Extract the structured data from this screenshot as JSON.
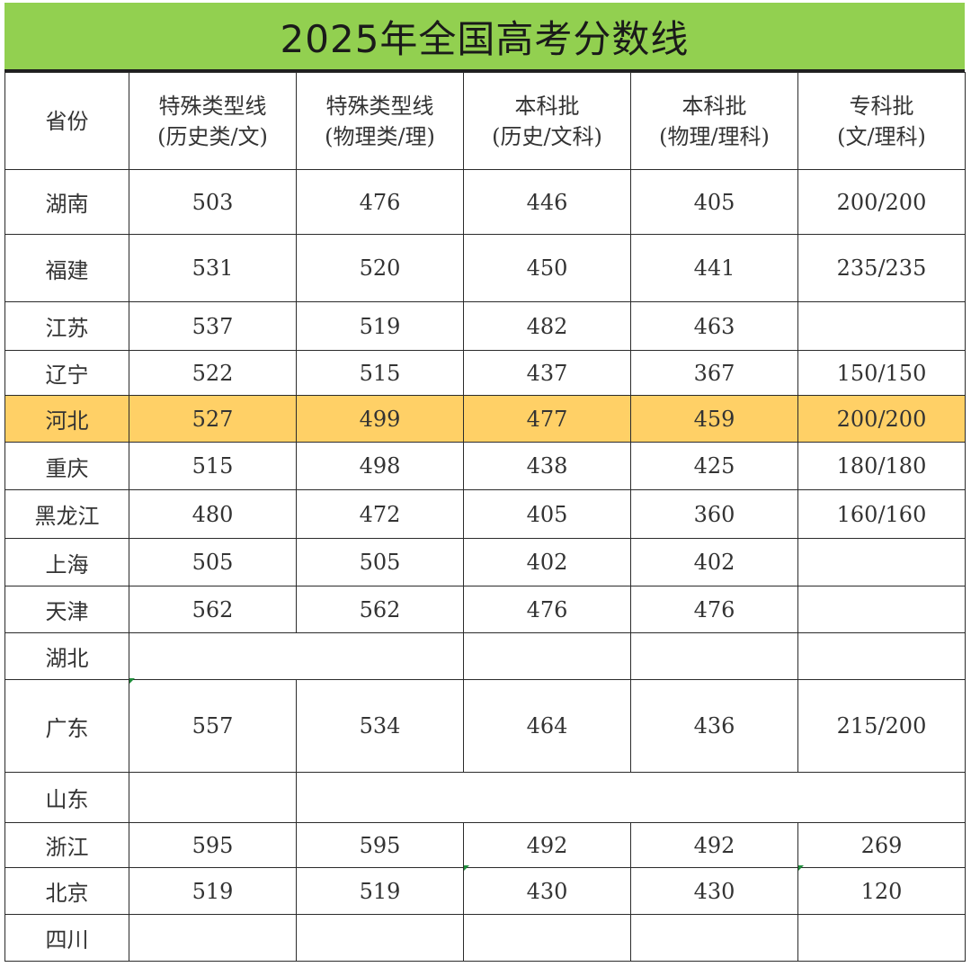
{
  "title": "2025年全国高考分数线",
  "headers": [
    [
      "省份"
    ],
    [
      "特殊类型线",
      "(历史类/文)"
    ],
    [
      "特殊类型线",
      "(物理类/理)"
    ],
    [
      "本科批",
      "(历史/文科)"
    ],
    [
      "本科批",
      "(物理/理科)"
    ],
    [
      "专科批",
      "(文/理科)"
    ]
  ],
  "rows": [
    {
      "province": "湖南",
      "values": [
        "503",
        "476",
        "446",
        "405",
        "200/200"
      ]
    },
    {
      "province": "福建",
      "values": [
        "531",
        "520",
        "450",
        "441",
        "235/235"
      ]
    },
    {
      "province": "江苏",
      "values": [
        "537",
        "519",
        "482",
        "463",
        ""
      ]
    },
    {
      "province": "辽宁",
      "values": [
        "522",
        "515",
        "437",
        "367",
        "150/150"
      ]
    },
    {
      "province": "河北",
      "values": [
        "527",
        "499",
        "477",
        "459",
        "200/200"
      ],
      "highlight": true
    },
    {
      "province": "重庆",
      "values": [
        "515",
        "498",
        "438",
        "425",
        "180/180"
      ]
    },
    {
      "province": "黑龙江",
      "values": [
        "480",
        "472",
        "405",
        "360",
        "160/160"
      ]
    },
    {
      "province": "上海",
      "values": [
        "505",
        "505",
        "402",
        "402",
        ""
      ]
    },
    {
      "province": "天津",
      "values": [
        "562",
        "562",
        "476",
        "476",
        ""
      ]
    },
    {
      "province": "湖北",
      "values": []
    },
    {
      "province": "广东",
      "values": [
        "557",
        "534",
        "464",
        "436",
        "215/200"
      ]
    },
    {
      "province": "山东",
      "values": []
    },
    {
      "province": "浙江",
      "values": [
        "595",
        "595",
        "492",
        "492",
        "269"
      ]
    },
    {
      "province": "北京",
      "values": [
        "519",
        "519",
        "430",
        "430",
        "120"
      ]
    },
    {
      "province": "四川",
      "values": [
        "",
        "",
        "",
        "",
        ""
      ]
    }
  ],
  "colors": {
    "title_bg": "#92d050",
    "highlight": "#ffd066"
  }
}
